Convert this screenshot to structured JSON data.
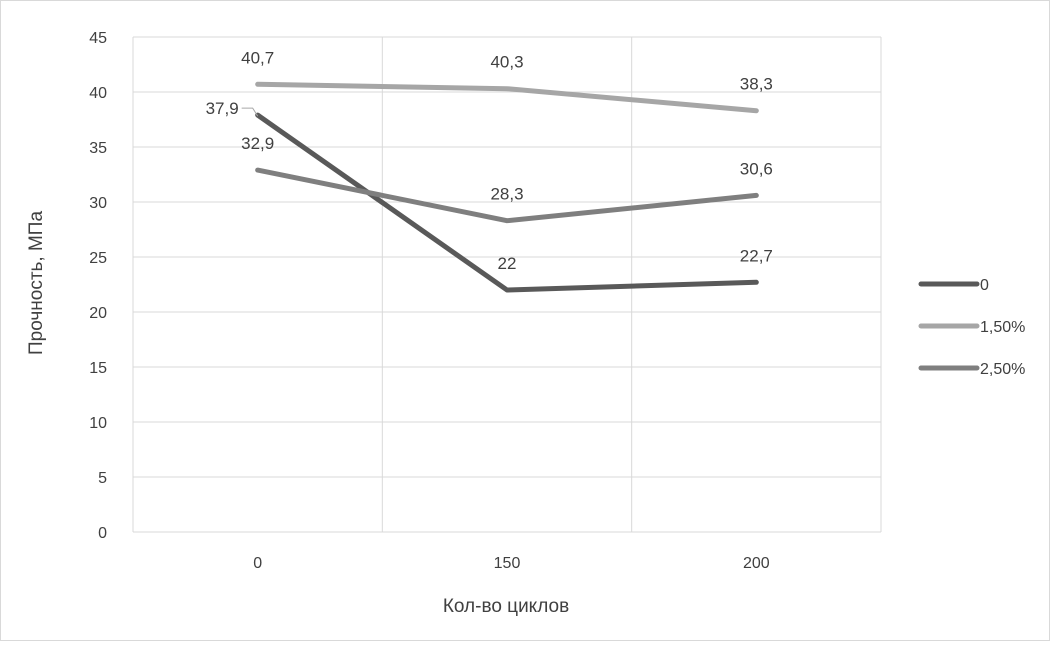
{
  "chart_data": {
    "type": "line",
    "categories": [
      "0",
      "150",
      "200"
    ],
    "series": [
      {
        "name": "0",
        "values": [
          37.9,
          22,
          22.7
        ],
        "labels": [
          "37,9",
          "22",
          "22,7"
        ],
        "color": "#595959"
      },
      {
        "name": "1,50%",
        "values": [
          40.7,
          40.3,
          38.3
        ],
        "labels": [
          "40,7",
          "40,3",
          "38,3"
        ],
        "color": "#a6a6a6"
      },
      {
        "name": "2,50%",
        "values": [
          32.9,
          28.3,
          30.6
        ],
        "labels": [
          "32,9",
          "28,3",
          "30,6"
        ],
        "color": "#7f7f7f"
      }
    ],
    "xlabel": "Кол-во циклов",
    "ylabel": "Прочность, МПа",
    "ylim": [
      0,
      45
    ],
    "yticks": [
      0,
      5,
      10,
      15,
      20,
      25,
      30,
      35,
      40,
      45
    ],
    "grid": true,
    "legend_position": "right"
  }
}
